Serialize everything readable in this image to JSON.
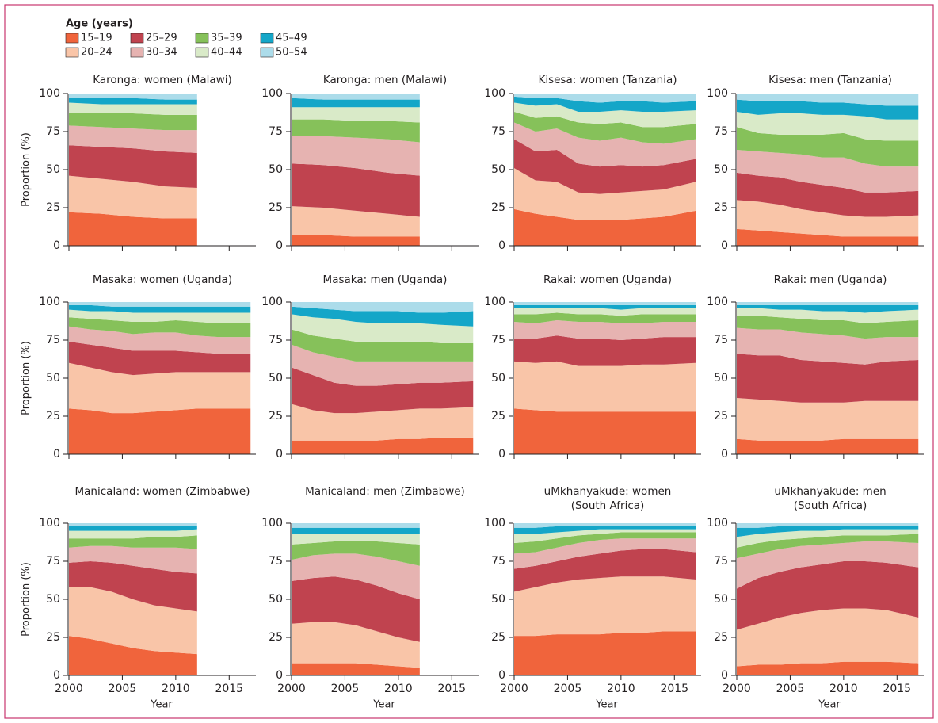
{
  "chart_data": {
    "type": "area",
    "legend_title": "Age (years)",
    "series": [
      {
        "name": "15–19",
        "color": "#f0643c"
      },
      {
        "name": "20–24",
        "color": "#f9c5a8"
      },
      {
        "name": "25–29",
        "color": "#c0434f"
      },
      {
        "name": "30–34",
        "color": "#e6b3b1"
      },
      {
        "name": "35–39",
        "color": "#86c15a"
      },
      {
        "name": "40–44",
        "color": "#d9eac8"
      },
      {
        "name": "45–49",
        "color": "#14a6c8"
      },
      {
        "name": "50–54",
        "color": "#acdcea"
      }
    ],
    "ylabel": "Proportion (%)",
    "xlabel": "Year",
    "xlim": [
      2000,
      2017.5
    ],
    "xticks": [
      2000,
      2005,
      2010,
      2015
    ],
    "ylim": [
      0,
      100
    ],
    "yticks": [
      0,
      25,
      50,
      75,
      100
    ],
    "panels": [
      {
        "title": [
          "Karonga: women (Malawi)"
        ],
        "x": [
          2000,
          2003,
          2006,
          2009,
          2012
        ],
        "values": [
          [
            22,
            21,
            19,
            18,
            18
          ],
          [
            24,
            23,
            23,
            21,
            20
          ],
          [
            20,
            21,
            22,
            23,
            23
          ],
          [
            13,
            13,
            13,
            14,
            15
          ],
          [
            8,
            9,
            10,
            10,
            10
          ],
          [
            7,
            6,
            6,
            7,
            7
          ],
          [
            3,
            4,
            4,
            3,
            3
          ],
          [
            3,
            3,
            3,
            4,
            4
          ]
        ]
      },
      {
        "title": [
          "Karonga: men (Malawi)"
        ],
        "x": [
          2000,
          2003,
          2006,
          2009,
          2012
        ],
        "values": [
          [
            7,
            7,
            6,
            6,
            6
          ],
          [
            19,
            18,
            17,
            15,
            13
          ],
          [
            28,
            28,
            28,
            27,
            27
          ],
          [
            18,
            19,
            20,
            22,
            22
          ],
          [
            11,
            11,
            11,
            12,
            13
          ],
          [
            8,
            8,
            9,
            9,
            10
          ],
          [
            6,
            5,
            5,
            5,
            5
          ],
          [
            3,
            4,
            4,
            4,
            4
          ]
        ]
      },
      {
        "title": [
          "Kisesa: women (Tanzania)"
        ],
        "x": [
          2000,
          2002,
          2004,
          2006,
          2008,
          2010,
          2012,
          2014,
          2017
        ],
        "values": [
          [
            24,
            21,
            19,
            17,
            17,
            17,
            18,
            19,
            23
          ],
          [
            27,
            22,
            23,
            18,
            17,
            18,
            18,
            18,
            19
          ],
          [
            19,
            19,
            21,
            19,
            18,
            18,
            16,
            16,
            15
          ],
          [
            11,
            13,
            14,
            17,
            17,
            18,
            16,
            14,
            13
          ],
          [
            7,
            9,
            8,
            10,
            11,
            10,
            10,
            11,
            10
          ],
          [
            6,
            8,
            8,
            7,
            8,
            8,
            10,
            10,
            9
          ],
          [
            4,
            5,
            4,
            7,
            6,
            6,
            7,
            6,
            6
          ],
          [
            2,
            3,
            3,
            5,
            6,
            5,
            5,
            6,
            5
          ]
        ]
      },
      {
        "title": [
          "Kisesa: men (Tanzania)"
        ],
        "x": [
          2000,
          2002,
          2004,
          2006,
          2008,
          2010,
          2012,
          2014,
          2017
        ],
        "values": [
          [
            11,
            10,
            9,
            8,
            7,
            6,
            6,
            6,
            6
          ],
          [
            19,
            19,
            18,
            16,
            15,
            14,
            13,
            13,
            14
          ],
          [
            18,
            17,
            18,
            18,
            18,
            18,
            16,
            16,
            16
          ],
          [
            15,
            16,
            16,
            18,
            18,
            20,
            19,
            17,
            16
          ],
          [
            15,
            12,
            12,
            13,
            15,
            16,
            16,
            17,
            17
          ],
          [
            10,
            12,
            14,
            14,
            13,
            12,
            15,
            14,
            14
          ],
          [
            8,
            9,
            8,
            8,
            8,
            8,
            8,
            9,
            9
          ],
          [
            4,
            5,
            5,
            5,
            6,
            6,
            7,
            8,
            8
          ]
        ]
      },
      {
        "title": [
          "Masaka: women (Uganda)"
        ],
        "x": [
          2000,
          2002,
          2004,
          2006,
          2008,
          2010,
          2012,
          2014,
          2017
        ],
        "values": [
          [
            30,
            29,
            27,
            27,
            28,
            29,
            30,
            30,
            30
          ],
          [
            30,
            28,
            27,
            25,
            25,
            25,
            24,
            24,
            24
          ],
          [
            14,
            15,
            16,
            16,
            15,
            14,
            13,
            12,
            12
          ],
          [
            10,
            10,
            11,
            11,
            12,
            12,
            11,
            11,
            11
          ],
          [
            6,
            7,
            7,
            8,
            7,
            8,
            9,
            9,
            9
          ],
          [
            5,
            5,
            6,
            6,
            6,
            5,
            6,
            7,
            7
          ],
          [
            3,
            4,
            3,
            4,
            4,
            4,
            4,
            4,
            4
          ],
          [
            2,
            2,
            3,
            3,
            3,
            3,
            3,
            3,
            3
          ]
        ]
      },
      {
        "title": [
          "Masaka: men (Uganda)"
        ],
        "x": [
          2000,
          2002,
          2004,
          2006,
          2008,
          2010,
          2012,
          2014,
          2017
        ],
        "values": [
          [
            9,
            9,
            9,
            9,
            9,
            10,
            10,
            11,
            11
          ],
          [
            24,
            20,
            18,
            18,
            19,
            19,
            20,
            19,
            20
          ],
          [
            24,
            23,
            20,
            18,
            17,
            17,
            17,
            17,
            17
          ],
          [
            15,
            15,
            17,
            16,
            16,
            15,
            14,
            14,
            13
          ],
          [
            10,
            11,
            12,
            13,
            13,
            13,
            13,
            12,
            12
          ],
          [
            10,
            12,
            13,
            13,
            12,
            12,
            12,
            12,
            11
          ],
          [
            5,
            6,
            6,
            7,
            8,
            8,
            7,
            8,
            10
          ],
          [
            3,
            4,
            5,
            6,
            6,
            6,
            7,
            7,
            6
          ]
        ]
      },
      {
        "title": [
          "Rakai: women (Uganda)"
        ],
        "x": [
          2000,
          2002,
          2004,
          2006,
          2008,
          2010,
          2012,
          2014,
          2017
        ],
        "values": [
          [
            30,
            29,
            28,
            28,
            28,
            28,
            28,
            28,
            28
          ],
          [
            31,
            31,
            33,
            30,
            30,
            30,
            31,
            31,
            32
          ],
          [
            15,
            16,
            17,
            18,
            18,
            17,
            17,
            18,
            17
          ],
          [
            11,
            10,
            10,
            11,
            11,
            11,
            10,
            10,
            10
          ],
          [
            5,
            6,
            5,
            5,
            5,
            5,
            6,
            5,
            5
          ],
          [
            4,
            4,
            3,
            4,
            4,
            4,
            4,
            4,
            4
          ],
          [
            2,
            2,
            2,
            2,
            2,
            3,
            2,
            2,
            2
          ],
          [
            2,
            2,
            2,
            2,
            2,
            2,
            2,
            2,
            2
          ]
        ]
      },
      {
        "title": [
          "Rakai: men (Uganda)"
        ],
        "x": [
          2000,
          2002,
          2004,
          2006,
          2008,
          2010,
          2012,
          2014,
          2017
        ],
        "values": [
          [
            10,
            9,
            9,
            9,
            9,
            10,
            10,
            10,
            10
          ],
          [
            27,
            27,
            26,
            25,
            25,
            24,
            25,
            25,
            25
          ],
          [
            29,
            29,
            30,
            28,
            27,
            26,
            24,
            26,
            27
          ],
          [
            17,
            17,
            17,
            18,
            18,
            18,
            17,
            16,
            15
          ],
          [
            8,
            9,
            8,
            9,
            9,
            10,
            10,
            10,
            11
          ],
          [
            5,
            5,
            5,
            6,
            6,
            6,
            7,
            7,
            7
          ],
          [
            2,
            2,
            3,
            3,
            4,
            4,
            5,
            4,
            3
          ],
          [
            2,
            2,
            2,
            2,
            2,
            2,
            2,
            2,
            2
          ]
        ]
      },
      {
        "title": [
          "Manicaland: women (Zimbabwe)"
        ],
        "x": [
          2000,
          2002,
          2004,
          2006,
          2008,
          2010,
          2012
        ],
        "values": [
          [
            26,
            24,
            21,
            18,
            16,
            15,
            14
          ],
          [
            32,
            34,
            34,
            32,
            30,
            29,
            28
          ],
          [
            16,
            17,
            19,
            22,
            24,
            24,
            25
          ],
          [
            10,
            10,
            11,
            12,
            14,
            16,
            16
          ],
          [
            6,
            5,
            5,
            6,
            7,
            7,
            9
          ],
          [
            5,
            5,
            5,
            5,
            4,
            4,
            4
          ],
          [
            3,
            3,
            3,
            3,
            3,
            3,
            2
          ],
          [
            2,
            2,
            2,
            2,
            2,
            2,
            2
          ]
        ]
      },
      {
        "title": [
          "Manicaland: men (Zimbabwe)"
        ],
        "x": [
          2000,
          2002,
          2004,
          2006,
          2008,
          2010,
          2012
        ],
        "values": [
          [
            8,
            8,
            8,
            8,
            7,
            6,
            5
          ],
          [
            26,
            27,
            27,
            25,
            22,
            19,
            17
          ],
          [
            28,
            29,
            30,
            30,
            30,
            29,
            28
          ],
          [
            14,
            15,
            15,
            17,
            19,
            21,
            22
          ],
          [
            10,
            8,
            8,
            8,
            10,
            12,
            14
          ],
          [
            7,
            6,
            5,
            5,
            5,
            6,
            7
          ],
          [
            4,
            4,
            4,
            4,
            4,
            4,
            4
          ],
          [
            3,
            3,
            3,
            3,
            3,
            3,
            3
          ]
        ]
      },
      {
        "title": [
          "uMkhanyakude: women",
          "(South Africa)"
        ],
        "x": [
          2000,
          2002,
          2004,
          2006,
          2008,
          2010,
          2012,
          2014,
          2017
        ],
        "values": [
          [
            26,
            26,
            27,
            27,
            27,
            28,
            28,
            29,
            29
          ],
          [
            29,
            32,
            34,
            36,
            37,
            37,
            37,
            36,
            34
          ],
          [
            15,
            14,
            14,
            15,
            16,
            17,
            18,
            18,
            18
          ],
          [
            10,
            9,
            9,
            9,
            9,
            8,
            7,
            7,
            9
          ],
          [
            7,
            7,
            6,
            5,
            4,
            4,
            4,
            4,
            4
          ],
          [
            6,
            5,
            4,
            3,
            3,
            2,
            2,
            2,
            2
          ],
          [
            4,
            4,
            4,
            3,
            2,
            2,
            2,
            2,
            2
          ],
          [
            3,
            3,
            2,
            2,
            2,
            2,
            2,
            2,
            2
          ]
        ]
      },
      {
        "title": [
          "uMkhanyakude: men",
          "(South Africa)"
        ],
        "x": [
          2000,
          2002,
          2004,
          2006,
          2008,
          2010,
          2012,
          2014,
          2017
        ],
        "values": [
          [
            6,
            7,
            7,
            8,
            8,
            9,
            9,
            9,
            8
          ],
          [
            24,
            27,
            31,
            33,
            35,
            35,
            35,
            34,
            30
          ],
          [
            27,
            30,
            30,
            30,
            30,
            31,
            31,
            31,
            33
          ],
          [
            20,
            16,
            15,
            14,
            13,
            12,
            13,
            14,
            16
          ],
          [
            7,
            7,
            6,
            5,
            5,
            5,
            4,
            4,
            6
          ],
          [
            7,
            6,
            5,
            5,
            4,
            4,
            4,
            4,
            3
          ],
          [
            6,
            4,
            4,
            3,
            3,
            2,
            2,
            2,
            2
          ],
          [
            3,
            3,
            2,
            2,
            2,
            2,
            2,
            2,
            2
          ]
        ]
      }
    ]
  }
}
